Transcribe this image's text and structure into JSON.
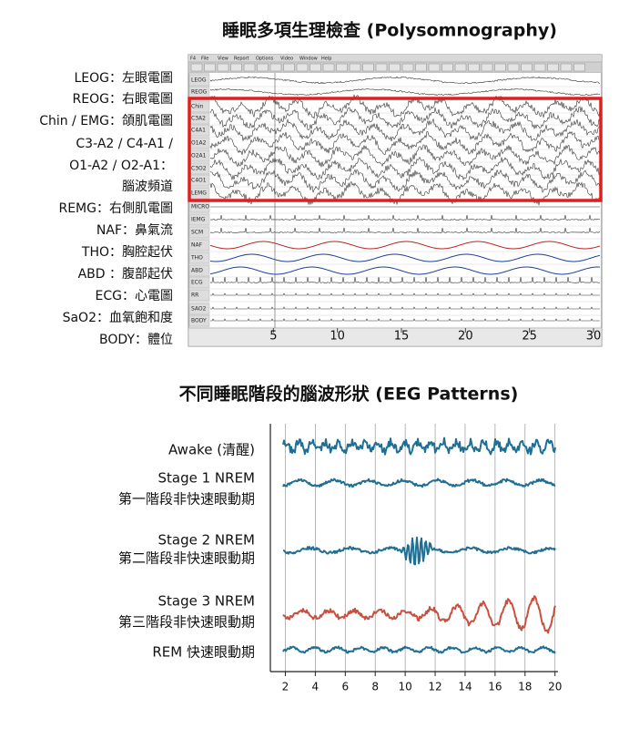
{
  "top": {
    "title": "睡眠多項生理檢查 (Polysomnography)",
    "legend": [
      "LEOG：左眼電圖",
      "REOG：右眼電圖",
      "Chin / EMG：頜肌電圖",
      "C3-A2 / C4-A1 /",
      "O1-A2 / O2-A1：",
      "腦波頻道",
      "REMG：右側肌電圖",
      "NAF：鼻氣流",
      "THO：胸腔起伏",
      "ABD ：腹部起伏",
      "ECG：心電圖",
      "SaO2：血氧飽和度",
      "BODY：體位"
    ],
    "screenshot": {
      "menu": [
        "F4",
        "File",
        "View",
        "Report",
        "Options",
        "Video",
        "Window",
        "Help"
      ],
      "channels": [
        "LEOG",
        "REOG",
        "Chin",
        "C3A2",
        "C4A1",
        "O1A2",
        "O2A1",
        "C3O2",
        "C4O1",
        "LEMG",
        "MICRO",
        "IEMG",
        "SCM",
        "NAF",
        "THO",
        "ABD",
        "ECG",
        "RR",
        "SAO2",
        "BODY"
      ],
      "xlim": [
        0,
        30
      ],
      "xticks": [
        5,
        10,
        15,
        20,
        25,
        30
      ]
    }
  },
  "bottom": {
    "title": "不同睡眠階段的腦波形狀 (EEG Patterns)",
    "stages": [
      {
        "label": [
          "Awake (清醒)"
        ],
        "color": "#1f6f94"
      },
      {
        "label": [
          "Stage 1 NREM",
          "第一階段非快速眼動期"
        ],
        "color": "#1f6f94"
      },
      {
        "label": [
          "Stage 2 NREM",
          "第二階段非快速眼動期"
        ],
        "color": "#1f6f94"
      },
      {
        "label": [
          "Stage 3 NREM",
          "第三階段非快速眼動期"
        ],
        "color": "#c9503f"
      },
      {
        "label": [
          "REM  快速眼動期"
        ],
        "color": "#1f6f94"
      }
    ],
    "xlim": [
      1,
      20.2
    ],
    "xticks": [
      2,
      4,
      6,
      8,
      10,
      12,
      14,
      16,
      18,
      20
    ]
  }
}
